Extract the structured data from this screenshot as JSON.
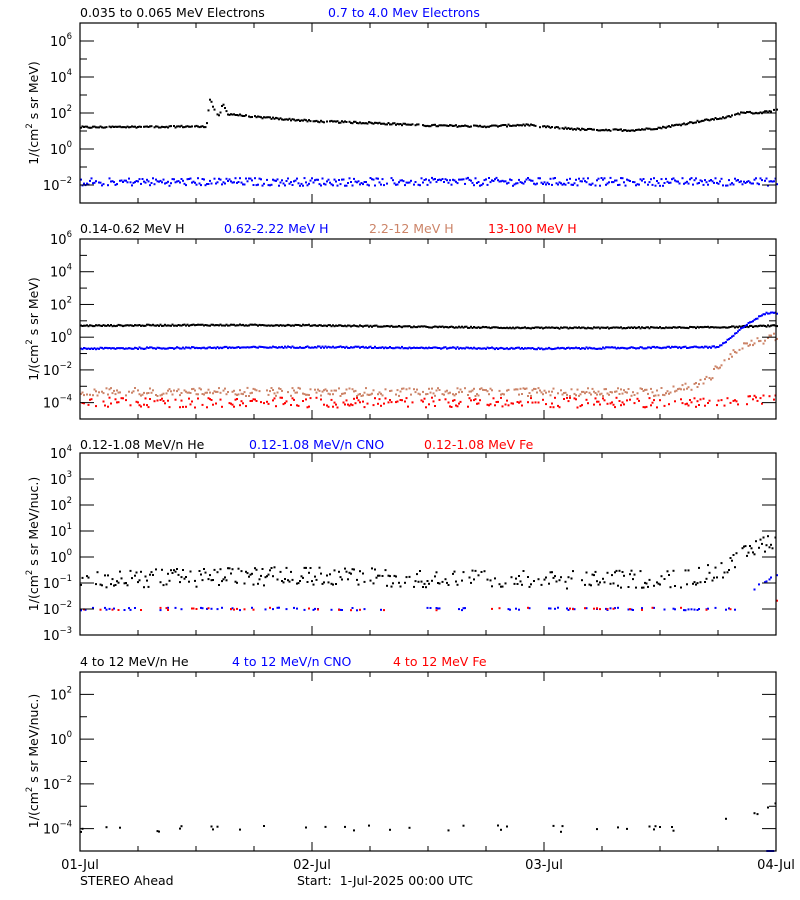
{
  "footer": {
    "spacecraft": "STEREO Ahead",
    "start": "Start:  1-Jul-2025 00:00 UTC"
  },
  "x_axis": {
    "range": [
      "2025-07-01T00:00",
      "2025-07-04T00:00"
    ],
    "tick_labels": [
      "01-Jul",
      "02-Jul",
      "03-Jul",
      "04-Jul"
    ],
    "minor_tick_hours": 6
  },
  "chart_data": [
    {
      "type": "scatter",
      "ylabel": "1/(cm2 s sr MeV)",
      "yscale": "log",
      "ylim": [
        0.001,
        10000000
      ],
      "ytick_exponents": [
        -2,
        0,
        2,
        4,
        6
      ],
      "legend": [
        "0.035 to 0.065 MeV Electrons",
        "0.7 to 4.0 Mev Electrons"
      ],
      "series": [
        {
          "name": "0.035 to 0.065 MeV Electrons",
          "color": "#000000",
          "spread_decades": 0.05,
          "coverage": 0.95,
          "points": [
            [
              "2025-07-01T00:00",
              16
            ],
            [
              "2025-07-01T06:00",
              17
            ],
            [
              "2025-07-01T13:00",
              18
            ],
            [
              "2025-07-01T13:20",
              600
            ],
            [
              "2025-07-01T13:50",
              150
            ],
            [
              "2025-07-01T14:20",
              60
            ],
            [
              "2025-07-01T14:40",
              350
            ],
            [
              "2025-07-01T15:10",
              90
            ],
            [
              "2025-07-01T18:00",
              60
            ],
            [
              "2025-07-02T00:00",
              35
            ],
            [
              "2025-07-02T06:00",
              28
            ],
            [
              "2025-07-02T12:00",
              20
            ],
            [
              "2025-07-02T18:00",
              18
            ],
            [
              "2025-07-02T22:00",
              22
            ],
            [
              "2025-07-03T00:00",
              17
            ],
            [
              "2025-07-03T04:00",
              12
            ],
            [
              "2025-07-03T09:00",
              11
            ],
            [
              "2025-07-03T12:00",
              15
            ],
            [
              "2025-07-03T16:00",
              35
            ],
            [
              "2025-07-03T19:00",
              60
            ],
            [
              "2025-07-03T20:30",
              110
            ],
            [
              "2025-07-03T22:00",
              100
            ],
            [
              "2025-07-04T00:00",
              140
            ]
          ]
        },
        {
          "name": "0.7 to 4.0 Mev Electrons",
          "color": "#0000ff",
          "spread_decades": 0.22,
          "coverage": 0.95,
          "points": [
            [
              "2025-07-01T00:00",
              0.015
            ],
            [
              "2025-07-04T00:00",
              0.015
            ]
          ]
        }
      ]
    },
    {
      "type": "scatter",
      "ylabel": "1/(cm2 s sr MeV)",
      "yscale": "log",
      "ylim": [
        1e-05,
        1000000
      ],
      "ytick_exponents": [
        -4,
        -2,
        0,
        2,
        4,
        6
      ],
      "legend": [
        "0.14-0.62 MeV H",
        "0.62-2.22 MeV H",
        "2.2-12 MeV H",
        "13-100 MeV H"
      ],
      "series": [
        {
          "name": "0.14-0.62 MeV H",
          "color": "#000000",
          "spread_decades": 0.04,
          "coverage": 1,
          "points": [
            [
              "2025-07-01T00:00",
              5
            ],
            [
              "2025-07-01T12:00",
              5.5
            ],
            [
              "2025-07-02T00:00",
              5.3
            ],
            [
              "2025-07-02T12:00",
              4.2
            ],
            [
              "2025-07-03T00:00",
              3.6
            ],
            [
              "2025-07-03T12:00",
              3.8
            ],
            [
              "2025-07-03T18:00",
              4
            ],
            [
              "2025-07-04T00:00",
              5
            ]
          ]
        },
        {
          "name": "0.62-2.22 MeV H",
          "color": "#0000ff",
          "spread_decades": 0.05,
          "coverage": 1,
          "points": [
            [
              "2025-07-01T00:00",
              0.2
            ],
            [
              "2025-07-02T00:00",
              0.25
            ],
            [
              "2025-07-03T00:00",
              0.2
            ],
            [
              "2025-07-03T18:00",
              0.25
            ],
            [
              "2025-07-03T19:00",
              0.7
            ],
            [
              "2025-07-03T20:50",
              6
            ],
            [
              "2025-07-03T22:20",
              20
            ],
            [
              "2025-07-03T23:00",
              30
            ],
            [
              "2025-07-04T00:00",
              30
            ]
          ]
        },
        {
          "name": "2.2-12 MeV H",
          "color": "#cc8468",
          "spread_decades": 0.25,
          "coverage": 0.8,
          "points": [
            [
              "2025-07-01T00:00",
              0.00045
            ],
            [
              "2025-07-03T12:00",
              0.00045
            ],
            [
              "2025-07-03T16:00",
              0.0013
            ],
            [
              "2025-07-03T17:00",
              0.003
            ],
            [
              "2025-07-03T17:40",
              0.01
            ],
            [
              "2025-07-03T18:40",
              0.055
            ],
            [
              "2025-07-03T20:20",
              0.25
            ],
            [
              "2025-07-03T22:20",
              0.6
            ],
            [
              "2025-07-04T00:00",
              1.2
            ]
          ]
        },
        {
          "name": "13-100 MeV H",
          "color": "#ff0000",
          "spread_decades": 0.3,
          "coverage": 0.6,
          "points": [
            [
              "2025-07-01T00:00",
              0.0001
            ],
            [
              "2025-07-03T18:00",
              0.0001
            ],
            [
              "2025-07-04T00:00",
              0.00018
            ]
          ]
        }
      ]
    },
    {
      "type": "scatter",
      "ylabel": "1/(cm2 s sr MeV/nuc.)",
      "yscale": "log",
      "ylim": [
        0.001,
        10000
      ],
      "ytick_exponents": [
        -3,
        -2,
        -1,
        0,
        1,
        2,
        3,
        4
      ],
      "legend": [
        "0.12-1.08 MeV/n He",
        "0.12-1.08 MeV/n CNO",
        "0.12-1.08 MeV Fe"
      ],
      "series": [
        {
          "name": "0.12-1.08 MeV/n He",
          "color": "#000000",
          "spread_decades": 0.35,
          "coverage": 0.75,
          "points": [
            [
              "2025-07-01T00:00",
              0.13
            ],
            [
              "2025-07-01T18:00",
              0.18
            ],
            [
              "2025-07-02T00:00",
              0.18
            ],
            [
              "2025-07-03T00:00",
              0.13
            ],
            [
              "2025-07-03T15:00",
              0.15
            ],
            [
              "2025-07-03T19:00",
              0.4
            ],
            [
              "2025-07-03T21:00",
              1.5
            ],
            [
              "2025-07-03T23:00",
              4
            ],
            [
              "2025-07-04T00:00",
              5
            ]
          ]
        },
        {
          "name": "0.12-1.08 MeV/n CNO",
          "color": "#0000ff",
          "spread_decades": 0.05,
          "coverage": 0.2,
          "points": [
            [
              "2025-07-01T00:00",
              0.01
            ],
            [
              "2025-07-03T20:00",
              0.01
            ],
            [
              "2025-07-03T22:00",
              0.08
            ],
            [
              "2025-07-04T00:00",
              0.2
            ]
          ]
        },
        {
          "name": "0.12-1.08 MeV Fe",
          "color": "#ff0000",
          "spread_decades": 0.05,
          "coverage": 0.08,
          "points": [
            [
              "2025-07-01T00:00",
              0.01
            ],
            [
              "2025-07-03T20:00",
              0.01
            ],
            [
              "2025-07-04T00:00",
              0.02
            ]
          ]
        }
      ]
    },
    {
      "type": "scatter",
      "ylabel": "1/(cm2 s sr MeV/nuc.)",
      "yscale": "log",
      "ylim": [
        1e-05,
        1000
      ],
      "ytick_exponents": [
        -4,
        -2,
        0,
        2
      ],
      "legend": [
        "4 to 12 MeV/n He",
        "4 to 12 MeV/n CNO",
        "4 to 12 MeV Fe"
      ],
      "series": [
        {
          "name": "4 to 12 MeV/n He",
          "color": "#000000",
          "spread_decades": 0.15,
          "coverage": 0.12,
          "points": [
            [
              "2025-07-01T00:00",
              0.0001
            ],
            [
              "2025-07-03T14:00",
              0.0001
            ],
            [
              "2025-07-03T17:00",
              0.00015
            ],
            [
              "2025-07-03T20:00",
              0.0003
            ],
            [
              "2025-07-03T22:00",
              0.0006
            ],
            [
              "2025-07-04T00:00",
              0.0016
            ]
          ]
        },
        {
          "name": "4 to 12 MeV/n CNO",
          "color": "#0000ff",
          "spread_decades": 0,
          "coverage": 1,
          "points": [
            [
              "2025-07-03T23:00",
              1e-05
            ],
            [
              "2025-07-03T23:40",
              1e-05
            ]
          ]
        },
        {
          "name": "4 to 12 MeV Fe",
          "color": "#ff0000",
          "spread_decades": 0,
          "coverage": 0,
          "points": []
        }
      ]
    }
  ]
}
